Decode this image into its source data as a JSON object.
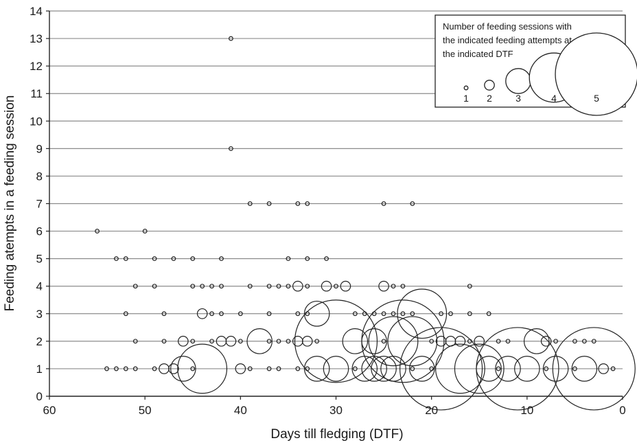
{
  "chart_data": {
    "type": "scatter",
    "subtype": "bubble",
    "xlabel": "Days till fledging (DTF)",
    "ylabel": "Feeding atempts in a feeding session",
    "xlim": [
      60,
      0
    ],
    "ylim": [
      0,
      14
    ],
    "x_ticks": [
      60,
      50,
      40,
      30,
      20,
      10,
      0
    ],
    "y_ticks": [
      0,
      1,
      2,
      3,
      4,
      5,
      6,
      7,
      8,
      9,
      10,
      11,
      12,
      13,
      14
    ],
    "x_reversed": true,
    "grid": "horizontal",
    "legend": {
      "title_lines": [
        "Number of feeding sessions with",
        "the indicated feeding attempts at",
        "the indicated DTF"
      ],
      "placement": "top-right",
      "sizes": [
        1,
        2,
        3,
        4,
        5
      ],
      "labels": [
        "1",
        "2",
        "3",
        "4",
        "5"
      ]
    },
    "points": [
      {
        "x": 41,
        "y": 13,
        "n": 1
      },
      {
        "x": 41,
        "y": 9,
        "n": 1
      },
      {
        "x": 39,
        "y": 7,
        "n": 1
      },
      {
        "x": 37,
        "y": 7,
        "n": 1
      },
      {
        "x": 34,
        "y": 7,
        "n": 1
      },
      {
        "x": 33,
        "y": 7,
        "n": 1
      },
      {
        "x": 25,
        "y": 7,
        "n": 1
      },
      {
        "x": 22,
        "y": 7,
        "n": 1
      },
      {
        "x": 55,
        "y": 6,
        "n": 1
      },
      {
        "x": 50,
        "y": 6,
        "n": 1
      },
      {
        "x": 53,
        "y": 5,
        "n": 1
      },
      {
        "x": 52,
        "y": 5,
        "n": 1
      },
      {
        "x": 49,
        "y": 5,
        "n": 1
      },
      {
        "x": 47,
        "y": 5,
        "n": 1
      },
      {
        "x": 45,
        "y": 5,
        "n": 1
      },
      {
        "x": 42,
        "y": 5,
        "n": 1
      },
      {
        "x": 35,
        "y": 5,
        "n": 1
      },
      {
        "x": 33,
        "y": 5,
        "n": 1
      },
      {
        "x": 31,
        "y": 5,
        "n": 1
      },
      {
        "x": 51,
        "y": 4,
        "n": 1
      },
      {
        "x": 49,
        "y": 4,
        "n": 1
      },
      {
        "x": 45,
        "y": 4,
        "n": 1
      },
      {
        "x": 44,
        "y": 4,
        "n": 1
      },
      {
        "x": 43,
        "y": 4,
        "n": 1
      },
      {
        "x": 42,
        "y": 4,
        "n": 1
      },
      {
        "x": 39,
        "y": 4,
        "n": 1
      },
      {
        "x": 37,
        "y": 4,
        "n": 1
      },
      {
        "x": 36,
        "y": 4,
        "n": 1
      },
      {
        "x": 35,
        "y": 4,
        "n": 1
      },
      {
        "x": 34,
        "y": 4,
        "n": 2
      },
      {
        "x": 33,
        "y": 4,
        "n": 1
      },
      {
        "x": 31,
        "y": 4,
        "n": 2
      },
      {
        "x": 30,
        "y": 4,
        "n": 1
      },
      {
        "x": 29,
        "y": 4,
        "n": 2
      },
      {
        "x": 25,
        "y": 4,
        "n": 2
      },
      {
        "x": 24,
        "y": 4,
        "n": 1
      },
      {
        "x": 23,
        "y": 4,
        "n": 1
      },
      {
        "x": 16,
        "y": 4,
        "n": 1
      },
      {
        "x": 52,
        "y": 3,
        "n": 1
      },
      {
        "x": 48,
        "y": 3,
        "n": 1
      },
      {
        "x": 44,
        "y": 3,
        "n": 2
      },
      {
        "x": 43,
        "y": 3,
        "n": 1
      },
      {
        "x": 42,
        "y": 3,
        "n": 1
      },
      {
        "x": 40,
        "y": 3,
        "n": 1
      },
      {
        "x": 37,
        "y": 3,
        "n": 1
      },
      {
        "x": 34,
        "y": 3,
        "n": 1
      },
      {
        "x": 33,
        "y": 3,
        "n": 1
      },
      {
        "x": 32,
        "y": 3,
        "n": 3
      },
      {
        "x": 28,
        "y": 3,
        "n": 1
      },
      {
        "x": 27,
        "y": 3,
        "n": 1
      },
      {
        "x": 26,
        "y": 3,
        "n": 1
      },
      {
        "x": 25,
        "y": 3,
        "n": 1
      },
      {
        "x": 24,
        "y": 3,
        "n": 1
      },
      {
        "x": 23,
        "y": 3,
        "n": 1
      },
      {
        "x": 22,
        "y": 3,
        "n": 1
      },
      {
        "x": 21,
        "y": 3,
        "n": 4
      },
      {
        "x": 19,
        "y": 3,
        "n": 1
      },
      {
        "x": 18,
        "y": 3,
        "n": 1
      },
      {
        "x": 16,
        "y": 3,
        "n": 1
      },
      {
        "x": 14,
        "y": 3,
        "n": 1
      },
      {
        "x": 51,
        "y": 2,
        "n": 1
      },
      {
        "x": 48,
        "y": 2,
        "n": 1
      },
      {
        "x": 46,
        "y": 2,
        "n": 2
      },
      {
        "x": 45,
        "y": 2,
        "n": 1
      },
      {
        "x": 43,
        "y": 2,
        "n": 1
      },
      {
        "x": 42,
        "y": 2,
        "n": 2
      },
      {
        "x": 41,
        "y": 2,
        "n": 2
      },
      {
        "x": 40,
        "y": 2,
        "n": 1
      },
      {
        "x": 38,
        "y": 2,
        "n": 3
      },
      {
        "x": 37,
        "y": 2,
        "n": 1
      },
      {
        "x": 36,
        "y": 2,
        "n": 1
      },
      {
        "x": 35,
        "y": 2,
        "n": 1
      },
      {
        "x": 34,
        "y": 2,
        "n": 2
      },
      {
        "x": 33,
        "y": 2,
        "n": 2
      },
      {
        "x": 32,
        "y": 2,
        "n": 1
      },
      {
        "x": 30,
        "y": 2,
        "n": 5
      },
      {
        "x": 28,
        "y": 2,
        "n": 3
      },
      {
        "x": 26,
        "y": 2,
        "n": 3
      },
      {
        "x": 25,
        "y": 2,
        "n": 1
      },
      {
        "x": 24,
        "y": 2,
        "n": 4
      },
      {
        "x": 23,
        "y": 2,
        "n": 5
      },
      {
        "x": 22,
        "y": 2,
        "n": 4
      },
      {
        "x": 20,
        "y": 2,
        "n": 1
      },
      {
        "x": 19,
        "y": 2,
        "n": 2
      },
      {
        "x": 18,
        "y": 2,
        "n": 2
      },
      {
        "x": 17,
        "y": 2,
        "n": 2
      },
      {
        "x": 16,
        "y": 2,
        "n": 1
      },
      {
        "x": 15,
        "y": 2,
        "n": 2
      },
      {
        "x": 13,
        "y": 2,
        "n": 1
      },
      {
        "x": 12,
        "y": 2,
        "n": 1
      },
      {
        "x": 9,
        "y": 2,
        "n": 3
      },
      {
        "x": 8,
        "y": 2,
        "n": 2
      },
      {
        "x": 7,
        "y": 2,
        "n": 1
      },
      {
        "x": 5,
        "y": 2,
        "n": 1
      },
      {
        "x": 4,
        "y": 2,
        "n": 1
      },
      {
        "x": 3,
        "y": 2,
        "n": 1
      },
      {
        "x": 54,
        "y": 1,
        "n": 1
      },
      {
        "x": 53,
        "y": 1,
        "n": 1
      },
      {
        "x": 52,
        "y": 1,
        "n": 1
      },
      {
        "x": 51,
        "y": 1,
        "n": 1
      },
      {
        "x": 49,
        "y": 1,
        "n": 1
      },
      {
        "x": 48,
        "y": 1,
        "n": 2
      },
      {
        "x": 47,
        "y": 1,
        "n": 2
      },
      {
        "x": 46,
        "y": 1,
        "n": 3
      },
      {
        "x": 45,
        "y": 1,
        "n": 1
      },
      {
        "x": 44,
        "y": 1,
        "n": 4
      },
      {
        "x": 40,
        "y": 1,
        "n": 2
      },
      {
        "x": 39,
        "y": 1,
        "n": 1
      },
      {
        "x": 37,
        "y": 1,
        "n": 1
      },
      {
        "x": 36,
        "y": 1,
        "n": 1
      },
      {
        "x": 34,
        "y": 1,
        "n": 1
      },
      {
        "x": 33,
        "y": 1,
        "n": 1
      },
      {
        "x": 32,
        "y": 1,
        "n": 3
      },
      {
        "x": 30,
        "y": 1,
        "n": 3
      },
      {
        "x": 28,
        "y": 1,
        "n": 1
      },
      {
        "x": 27,
        "y": 1,
        "n": 3
      },
      {
        "x": 26,
        "y": 1,
        "n": 3
      },
      {
        "x": 25,
        "y": 1,
        "n": 3
      },
      {
        "x": 24,
        "y": 1,
        "n": 3
      },
      {
        "x": 22,
        "y": 1,
        "n": 1
      },
      {
        "x": 21,
        "y": 1,
        "n": 3
      },
      {
        "x": 20,
        "y": 1,
        "n": 1
      },
      {
        "x": 19,
        "y": 1,
        "n": 5
      },
      {
        "x": 17,
        "y": 1,
        "n": 4
      },
      {
        "x": 15,
        "y": 1,
        "n": 4
      },
      {
        "x": 14,
        "y": 1,
        "n": 3
      },
      {
        "x": 13,
        "y": 1,
        "n": 1
      },
      {
        "x": 12,
        "y": 1,
        "n": 3
      },
      {
        "x": 11,
        "y": 1,
        "n": 5
      },
      {
        "x": 10,
        "y": 1,
        "n": 3
      },
      {
        "x": 8,
        "y": 1,
        "n": 1
      },
      {
        "x": 7,
        "y": 1,
        "n": 3
      },
      {
        "x": 5,
        "y": 1,
        "n": 1
      },
      {
        "x": 4,
        "y": 1,
        "n": 3
      },
      {
        "x": 3,
        "y": 1,
        "n": 5
      },
      {
        "x": 2,
        "y": 1,
        "n": 2
      },
      {
        "x": 1,
        "y": 1,
        "n": 1
      }
    ]
  }
}
